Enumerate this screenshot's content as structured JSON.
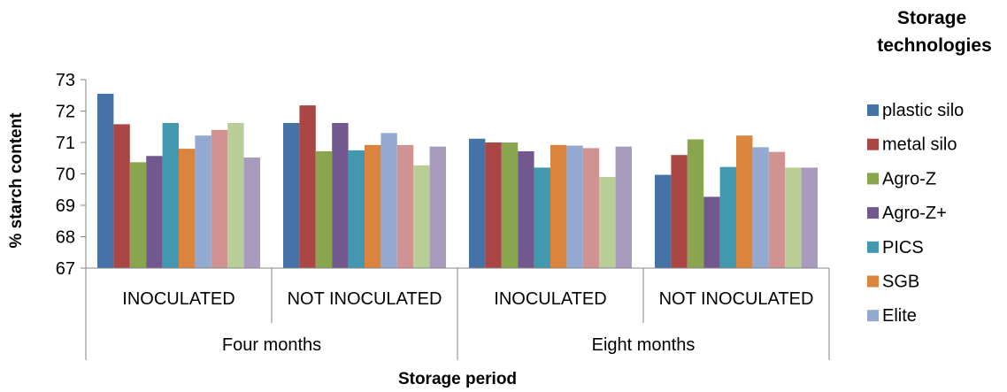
{
  "chart_data": {
    "type": "bar",
    "title": "",
    "xlabel": "Storage period",
    "ylabel": "% starch content",
    "ylim": [
      67,
      73
    ],
    "yticks": [
      67,
      68,
      69,
      70,
      71,
      72,
      73
    ],
    "grid": false,
    "legend_position": "right",
    "legend_title": "Storage technologies",
    "groups": [
      {
        "label": "Four months",
        "categories": [
          "INOCULATED",
          "NOT INOCULATED"
        ]
      },
      {
        "label": "Eight months",
        "categories": [
          "INOCULATED",
          "NOT INOCULATED"
        ]
      }
    ],
    "categories": [
      "Four months - INOCULATED",
      "Four months - NOT INOCULATED",
      "Eight months - INOCULATED",
      "Eight months - NOT INOCULATED"
    ],
    "series": [
      {
        "name": "plastic silo",
        "color": "#4572A7",
        "values": [
          72.55,
          71.62,
          71.12,
          69.97
        ]
      },
      {
        "name": "metal silo",
        "color": "#AA4643",
        "values": [
          71.58,
          72.18,
          71.0,
          70.6
        ]
      },
      {
        "name": "Agro-Z",
        "color": "#89A54E",
        "values": [
          70.37,
          70.72,
          71.0,
          71.1
        ]
      },
      {
        "name": "Agro-Z+",
        "color": "#71588F",
        "values": [
          70.57,
          71.62,
          70.72,
          69.27
        ]
      },
      {
        "name": "PICS",
        "color": "#4198AF",
        "values": [
          71.62,
          70.75,
          70.2,
          70.22
        ]
      },
      {
        "name": "SGB",
        "color": "#DB843D",
        "values": [
          70.8,
          70.92,
          70.92,
          71.22
        ]
      },
      {
        "name": "Elite",
        "color": "#93A9CF",
        "values": [
          71.22,
          71.3,
          70.9,
          70.85
        ]
      },
      {
        "name": "",
        "color": "#D19392",
        "values": [
          71.4,
          70.92,
          70.82,
          70.7
        ]
      },
      {
        "name": "",
        "color": "#B9CD96",
        "values": [
          71.62,
          70.27,
          69.9,
          70.2
        ]
      },
      {
        "name": "",
        "color": "#A99BBD",
        "values": [
          70.52,
          70.87,
          70.87,
          70.2
        ]
      }
    ]
  }
}
